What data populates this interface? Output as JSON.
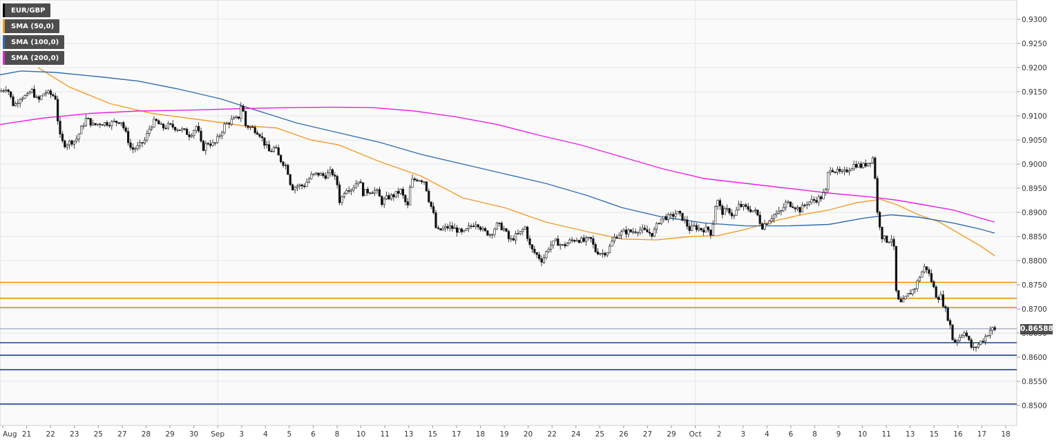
{
  "legend": [
    {
      "label": "EUR/GBP",
      "color": "#000000"
    },
    {
      "label": "SMA (50,0)",
      "color": "#f59a23"
    },
    {
      "label": "SMA (100,0)",
      "color": "#2f6db3"
    },
    {
      "label": "SMA (200,0)",
      "color": "#e81fe8"
    }
  ],
  "last_price_label": "0.86588",
  "chart_data": {
    "type": "candlestick",
    "symbol": "EUR/GBP",
    "ylim": [
      0.847,
      0.934
    ],
    "y_ticks": [
      "0.9300",
      "0.9250",
      "0.9200",
      "0.9150",
      "0.9100",
      "0.9050",
      "0.9000",
      "0.8950",
      "0.8900",
      "0.8850",
      "0.8800",
      "0.8750",
      "0.8700",
      "0.8650",
      "0.8600",
      "0.8550",
      "0.8500"
    ],
    "x_tick_labels": [
      "Aug",
      "21",
      "22",
      "23",
      "25",
      "27",
      "28",
      "29",
      "30",
      "Sep",
      "3",
      "4",
      "5",
      "6",
      "8",
      "10",
      "11",
      "13",
      "15",
      "17",
      "18",
      "19",
      "20",
      "22",
      "24",
      "25",
      "26",
      "27",
      "29",
      "Oct",
      "2",
      "3",
      "4",
      "6",
      "8",
      "9",
      "10",
      "11",
      "13",
      "15",
      "16",
      "17",
      "18"
    ],
    "horizontal_levels": {
      "resistance": [
        0.8755,
        0.8722,
        0.8703
      ],
      "support": [
        0.863,
        0.8604,
        0.8574,
        0.8503
      ],
      "resistance_color": "#f28c00",
      "support_color": "#1f3f8f",
      "last_price": 0.86588
    },
    "price_path": [
      [
        0,
        0.915
      ],
      [
        10,
        0.916
      ],
      [
        20,
        0.912
      ],
      [
        30,
        0.914
      ],
      [
        40,
        0.914
      ],
      [
        45,
        0.9155
      ],
      [
        55,
        0.913
      ],
      [
        65,
        0.915
      ],
      [
        72,
        0.9145
      ],
      [
        80,
        0.914
      ],
      [
        86,
        0.906
      ],
      [
        92,
        0.904
      ],
      [
        100,
        0.9045
      ],
      [
        110,
        0.905
      ],
      [
        118,
        0.9075
      ],
      [
        125,
        0.9095
      ],
      [
        135,
        0.908
      ],
      [
        145,
        0.9085
      ],
      [
        160,
        0.9085
      ],
      [
        175,
        0.909
      ],
      [
        183,
        0.906
      ],
      [
        190,
        0.903
      ],
      [
        200,
        0.9035
      ],
      [
        210,
        0.905
      ],
      [
        218,
        0.908
      ],
      [
        225,
        0.909
      ],
      [
        235,
        0.9075
      ],
      [
        245,
        0.908
      ],
      [
        255,
        0.9075
      ],
      [
        265,
        0.907
      ],
      [
        275,
        0.906
      ],
      [
        285,
        0.908
      ],
      [
        293,
        0.903
      ],
      [
        300,
        0.9045
      ],
      [
        310,
        0.904
      ],
      [
        318,
        0.906
      ],
      [
        325,
        0.908
      ],
      [
        335,
        0.909
      ],
      [
        345,
        0.9095
      ],
      [
        350,
        0.913
      ],
      [
        355,
        0.908
      ],
      [
        365,
        0.9075
      ],
      [
        375,
        0.9065
      ],
      [
        382,
        0.9045
      ],
      [
        390,
        0.9025
      ],
      [
        398,
        0.9035
      ],
      [
        405,
        0.901
      ],
      [
        415,
        0.8995
      ],
      [
        422,
        0.895
      ],
      [
        430,
        0.8955
      ],
      [
        440,
        0.8955
      ],
      [
        450,
        0.8975
      ],
      [
        460,
        0.898
      ],
      [
        470,
        0.8975
      ],
      [
        480,
        0.8985
      ],
      [
        488,
        0.896
      ],
      [
        492,
        0.892
      ],
      [
        500,
        0.895
      ],
      [
        510,
        0.895
      ],
      [
        520,
        0.897
      ],
      [
        525,
        0.894
      ],
      [
        535,
        0.8945
      ],
      [
        545,
        0.8945
      ],
      [
        553,
        0.892
      ],
      [
        560,
        0.893
      ],
      [
        570,
        0.8935
      ],
      [
        580,
        0.8945
      ],
      [
        590,
        0.891
      ],
      [
        595,
        0.8965
      ],
      [
        605,
        0.897
      ],
      [
        615,
        0.8965
      ],
      [
        620,
        0.893
      ],
      [
        627,
        0.89
      ],
      [
        632,
        0.886
      ],
      [
        640,
        0.8865
      ],
      [
        650,
        0.887
      ],
      [
        660,
        0.8865
      ],
      [
        670,
        0.8855
      ],
      [
        680,
        0.887
      ],
      [
        690,
        0.888
      ],
      [
        700,
        0.886
      ],
      [
        710,
        0.8855
      ],
      [
        720,
        0.8875
      ],
      [
        730,
        0.8865
      ],
      [
        738,
        0.884
      ],
      [
        745,
        0.885
      ],
      [
        752,
        0.8855
      ],
      [
        760,
        0.887
      ],
      [
        768,
        0.8825
      ],
      [
        775,
        0.8815
      ],
      [
        785,
        0.88
      ],
      [
        795,
        0.883
      ],
      [
        805,
        0.884
      ],
      [
        815,
        0.883
      ],
      [
        825,
        0.884
      ],
      [
        835,
        0.8845
      ],
      [
        845,
        0.884
      ],
      [
        855,
        0.8845
      ],
      [
        862,
        0.882
      ],
      [
        872,
        0.8815
      ],
      [
        880,
        0.882
      ],
      [
        888,
        0.8845
      ],
      [
        895,
        0.8855
      ],
      [
        905,
        0.886
      ],
      [
        915,
        0.886
      ],
      [
        925,
        0.8865
      ],
      [
        935,
        0.886
      ],
      [
        945,
        0.8855
      ],
      [
        955,
        0.8885
      ],
      [
        962,
        0.889
      ],
      [
        970,
        0.889
      ],
      [
        980,
        0.89
      ],
      [
        990,
        0.8885
      ],
      [
        998,
        0.8865
      ],
      [
        1005,
        0.887
      ],
      [
        1015,
        0.8865
      ],
      [
        1025,
        0.8865
      ],
      [
        1030,
        0.8855
      ],
      [
        1037,
        0.893
      ],
      [
        1045,
        0.89
      ],
      [
        1055,
        0.8905
      ],
      [
        1062,
        0.889
      ],
      [
        1070,
        0.8915
      ],
      [
        1078,
        0.891
      ],
      [
        1088,
        0.8905
      ],
      [
        1095,
        0.89
      ],
      [
        1103,
        0.887
      ],
      [
        1110,
        0.888
      ],
      [
        1120,
        0.8895
      ],
      [
        1130,
        0.89
      ],
      [
        1138,
        0.892
      ],
      [
        1148,
        0.8915
      ],
      [
        1158,
        0.8905
      ],
      [
        1168,
        0.892
      ],
      [
        1178,
        0.8925
      ],
      [
        1188,
        0.893
      ],
      [
        1196,
        0.8945
      ],
      [
        1200,
        0.8995
      ],
      [
        1210,
        0.8985
      ],
      [
        1220,
        0.898
      ],
      [
        1228,
        0.899
      ],
      [
        1238,
        0.9
      ],
      [
        1248,
        0.8995
      ],
      [
        1258,
        0.9005
      ],
      [
        1265,
        0.9015
      ],
      [
        1270,
        0.89
      ],
      [
        1277,
        0.885
      ],
      [
        1285,
        0.884
      ],
      [
        1293,
        0.885
      ],
      [
        1298,
        0.872
      ],
      [
        1305,
        0.871
      ],
      [
        1315,
        0.873
      ],
      [
        1325,
        0.8745
      ],
      [
        1332,
        0.877
      ],
      [
        1340,
        0.879
      ],
      [
        1348,
        0.876
      ],
      [
        1356,
        0.8725
      ],
      [
        1362,
        0.8725
      ],
      [
        1368,
        0.87
      ],
      [
        1375,
        0.867
      ],
      [
        1380,
        0.863
      ],
      [
        1388,
        0.864
      ],
      [
        1396,
        0.8655
      ],
      [
        1402,
        0.8635
      ],
      [
        1408,
        0.8615
      ],
      [
        1415,
        0.8625
      ],
      [
        1422,
        0.8635
      ],
      [
        1428,
        0.8645
      ],
      [
        1435,
        0.866
      ],
      [
        1440,
        0.8655
      ],
      [
        1443,
        0.86588
      ]
    ],
    "series": [
      {
        "name": "SMA (50,0)",
        "color": "#f59a23",
        "points": [
          [
            55,
            0.92
          ],
          [
            100,
            0.916
          ],
          [
            160,
            0.9125
          ],
          [
            220,
            0.9105
          ],
          [
            300,
            0.909
          ],
          [
            350,
            0.908
          ],
          [
            400,
            0.9075
          ],
          [
            450,
            0.905
          ],
          [
            490,
            0.904
          ],
          [
            550,
            0.9005
          ],
          [
            610,
            0.8975
          ],
          [
            670,
            0.893
          ],
          [
            730,
            0.891
          ],
          [
            790,
            0.888
          ],
          [
            850,
            0.886
          ],
          [
            900,
            0.8845
          ],
          [
            950,
            0.8843
          ],
          [
            1000,
            0.885
          ],
          [
            1040,
            0.8852
          ],
          [
            1080,
            0.8865
          ],
          [
            1120,
            0.8882
          ],
          [
            1160,
            0.8895
          ],
          [
            1200,
            0.8905
          ],
          [
            1240,
            0.892
          ],
          [
            1275,
            0.8927
          ],
          [
            1300,
            0.8915
          ],
          [
            1330,
            0.8895
          ],
          [
            1360,
            0.888
          ],
          [
            1390,
            0.8855
          ],
          [
            1420,
            0.883
          ],
          [
            1440,
            0.881
          ]
        ]
      },
      {
        "name": "SMA (100,0)",
        "color": "#2f6db3",
        "points": [
          [
            0,
            0.9185
          ],
          [
            30,
            0.9193
          ],
          [
            80,
            0.919
          ],
          [
            150,
            0.918
          ],
          [
            200,
            0.9172
          ],
          [
            260,
            0.9155
          ],
          [
            320,
            0.9135
          ],
          [
            370,
            0.9112
          ],
          [
            430,
            0.9085
          ],
          [
            490,
            0.9065
          ],
          [
            550,
            0.9045
          ],
          [
            610,
            0.902
          ],
          [
            670,
            0.9
          ],
          [
            730,
            0.898
          ],
          [
            790,
            0.896
          ],
          [
            850,
            0.8935
          ],
          [
            900,
            0.891
          ],
          [
            960,
            0.889
          ],
          [
            1020,
            0.8878
          ],
          [
            1080,
            0.8872
          ],
          [
            1140,
            0.8872
          ],
          [
            1200,
            0.8875
          ],
          [
            1250,
            0.8888
          ],
          [
            1290,
            0.8895
          ],
          [
            1330,
            0.889
          ],
          [
            1380,
            0.8878
          ],
          [
            1420,
            0.8865
          ],
          [
            1440,
            0.8857
          ]
        ]
      },
      {
        "name": "SMA (200,0)",
        "color": "#e81fe8",
        "points": [
          [
            0,
            0.9082
          ],
          [
            60,
            0.9095
          ],
          [
            130,
            0.9105
          ],
          [
            200,
            0.911
          ],
          [
            280,
            0.9112
          ],
          [
            350,
            0.9115
          ],
          [
            420,
            0.9117
          ],
          [
            480,
            0.9118
          ],
          [
            540,
            0.9117
          ],
          [
            600,
            0.911
          ],
          [
            660,
            0.9098
          ],
          [
            720,
            0.9082
          ],
          [
            780,
            0.906
          ],
          [
            840,
            0.904
          ],
          [
            900,
            0.9015
          ],
          [
            960,
            0.899
          ],
          [
            1020,
            0.897
          ],
          [
            1080,
            0.896
          ],
          [
            1140,
            0.895
          ],
          [
            1200,
            0.894
          ],
          [
            1260,
            0.8932
          ],
          [
            1300,
            0.8925
          ],
          [
            1340,
            0.8915
          ],
          [
            1380,
            0.8905
          ],
          [
            1420,
            0.8888
          ],
          [
            1440,
            0.888
          ]
        ]
      }
    ]
  }
}
